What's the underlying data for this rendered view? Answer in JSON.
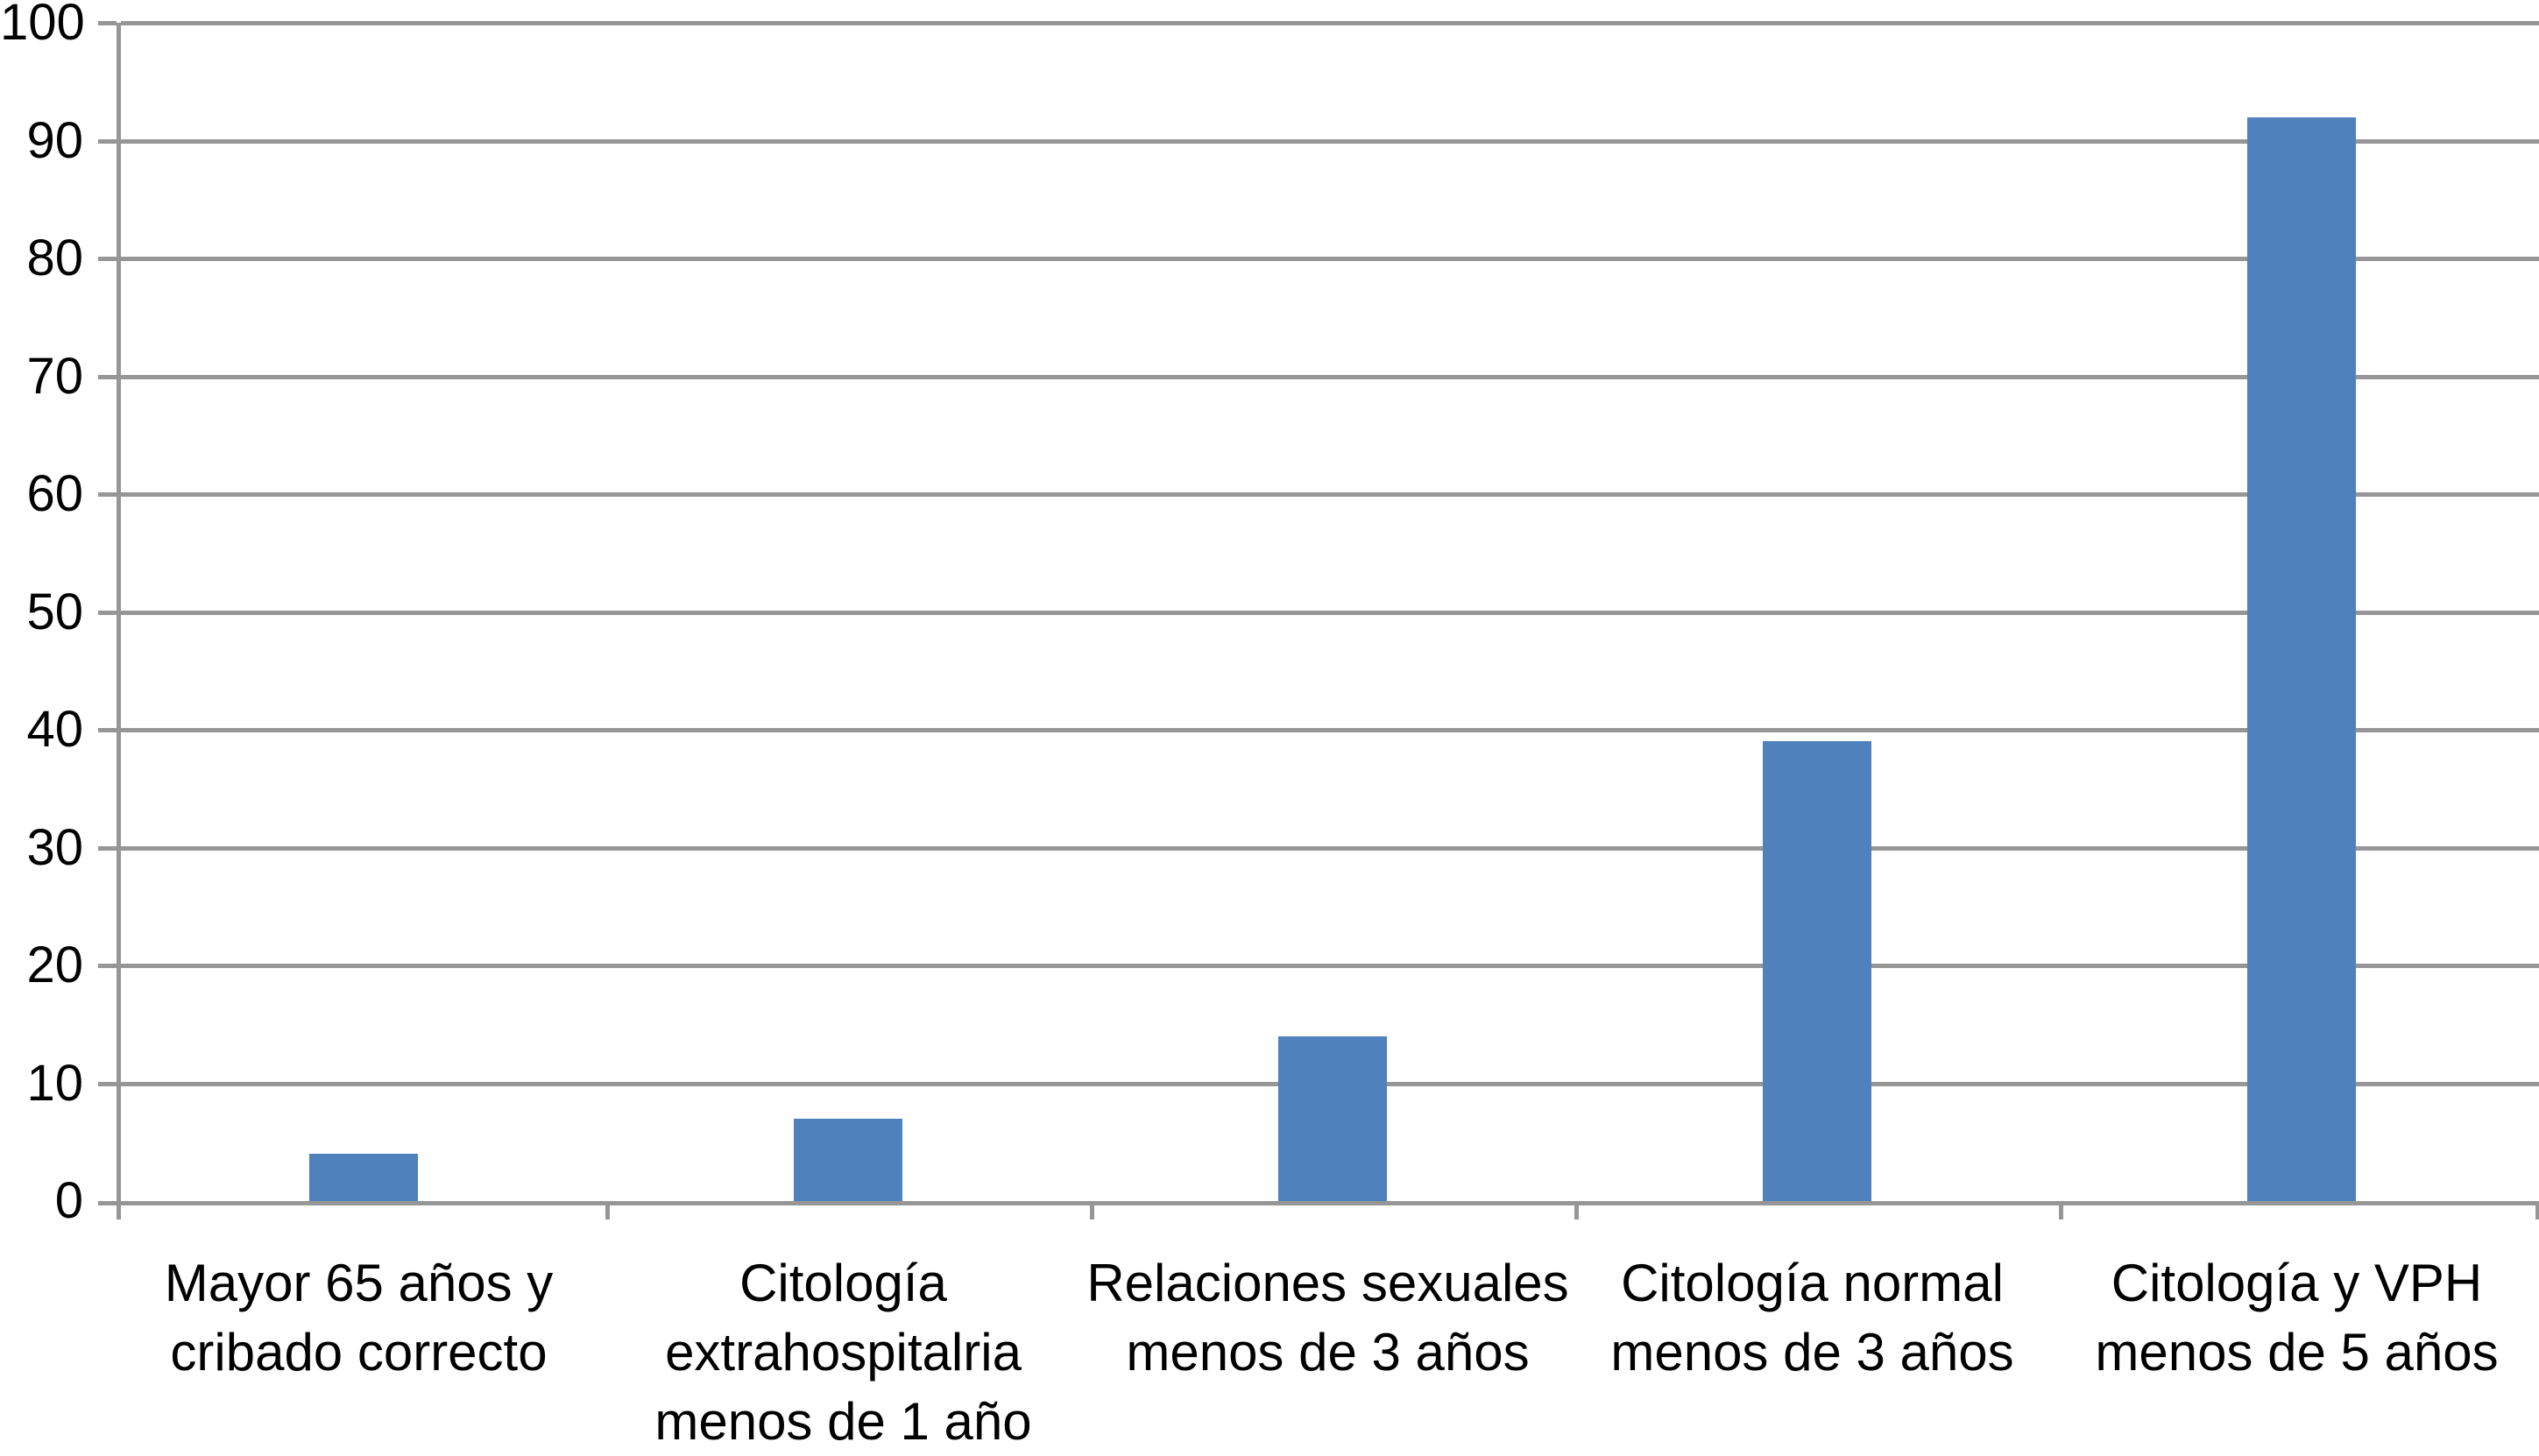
{
  "chart_data": {
    "type": "bar",
    "title": "",
    "xlabel": "",
    "ylabel": "",
    "categories": [
      "Mayor 65 años y cribado correcto",
      "Citología extrahospitalria menos de 1 año",
      "Relaciones sexuales menos de 3 años",
      "Citología normal menos de 3 años",
      "Citología y VPH menos de 5 años"
    ],
    "category_lines": [
      [
        "Mayor 65 años y",
        "cribado correcto"
      ],
      [
        "Citología",
        "extrahospitalria",
        "menos de 1 año"
      ],
      [
        "Relaciones sexuales",
        "menos de 3 años"
      ],
      [
        "Citología normal",
        "menos de 3 años"
      ],
      [
        "Citología y VPH",
        "menos de 5 años"
      ]
    ],
    "values": [
      4,
      7,
      14,
      39,
      92
    ],
    "ylim": [
      0,
      100
    ],
    "ytick_interval": 10,
    "ytick_labels": [
      "0",
      "10",
      "20",
      "30",
      "40",
      "50",
      "60",
      "70",
      "80",
      "90",
      "100"
    ],
    "grid": true,
    "legend": false,
    "colors": {
      "bar": "#4f81bd",
      "axis": "#969696",
      "text": "#000000"
    }
  }
}
